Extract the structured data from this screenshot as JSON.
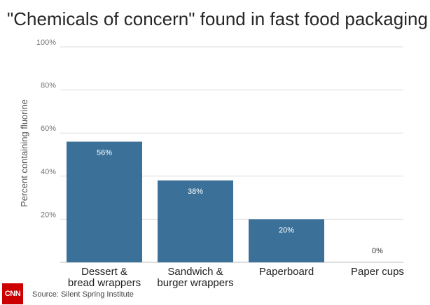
{
  "chart_data": {
    "type": "bar",
    "title": "\"Chemicals of concern\" found in fast food packaging",
    "ylabel": "Percent containing fluorine",
    "xlabel": "",
    "categories": [
      [
        "Dessert &",
        "bread wrappers"
      ],
      [
        "Sandwich &",
        "burger wrappers"
      ],
      [
        "Paperboard"
      ],
      [
        "Paper cups"
      ]
    ],
    "values": [
      56,
      38,
      20,
      0
    ],
    "value_labels": [
      "56%",
      "38%",
      "20%",
      "0%"
    ],
    "ylim": [
      0,
      100
    ],
    "yticks": [
      20,
      40,
      60,
      80,
      100
    ],
    "ytick_labels": [
      "20%",
      "40%",
      "60%",
      "80%",
      "100%"
    ],
    "grid": true,
    "bar_color": "#3b7199",
    "grid_color": "#dddddd"
  },
  "footer": {
    "logo_text": "CNN",
    "source": "Source: Silent Spring Institute"
  }
}
